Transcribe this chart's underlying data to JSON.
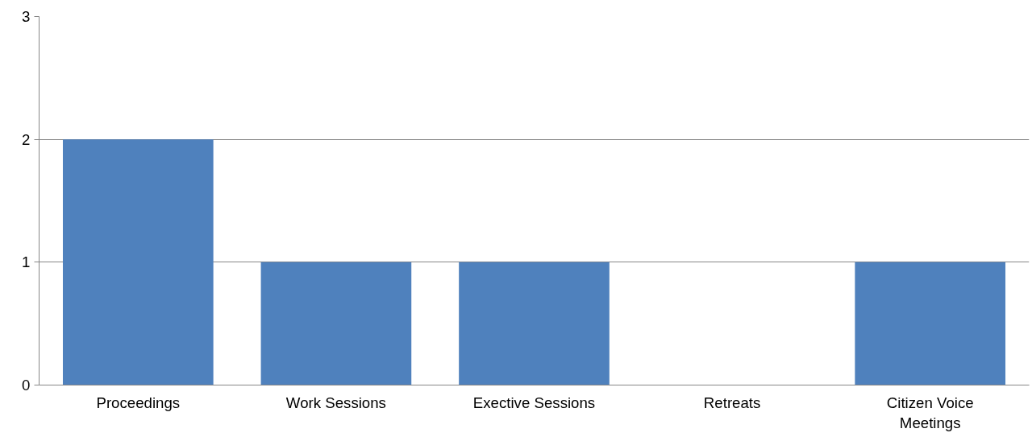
{
  "chart_data": {
    "type": "bar",
    "categories": [
      "Proceedings",
      "Work Sessions",
      "Exective Sessions",
      "Retreats",
      "Citizen Voice Meetings"
    ],
    "values": [
      2,
      1,
      1,
      0,
      1
    ],
    "color": "#4f81bd",
    "ylim": [
      0,
      3
    ],
    "yticks": [
      0,
      1,
      2,
      3
    ],
    "grid": "y"
  }
}
